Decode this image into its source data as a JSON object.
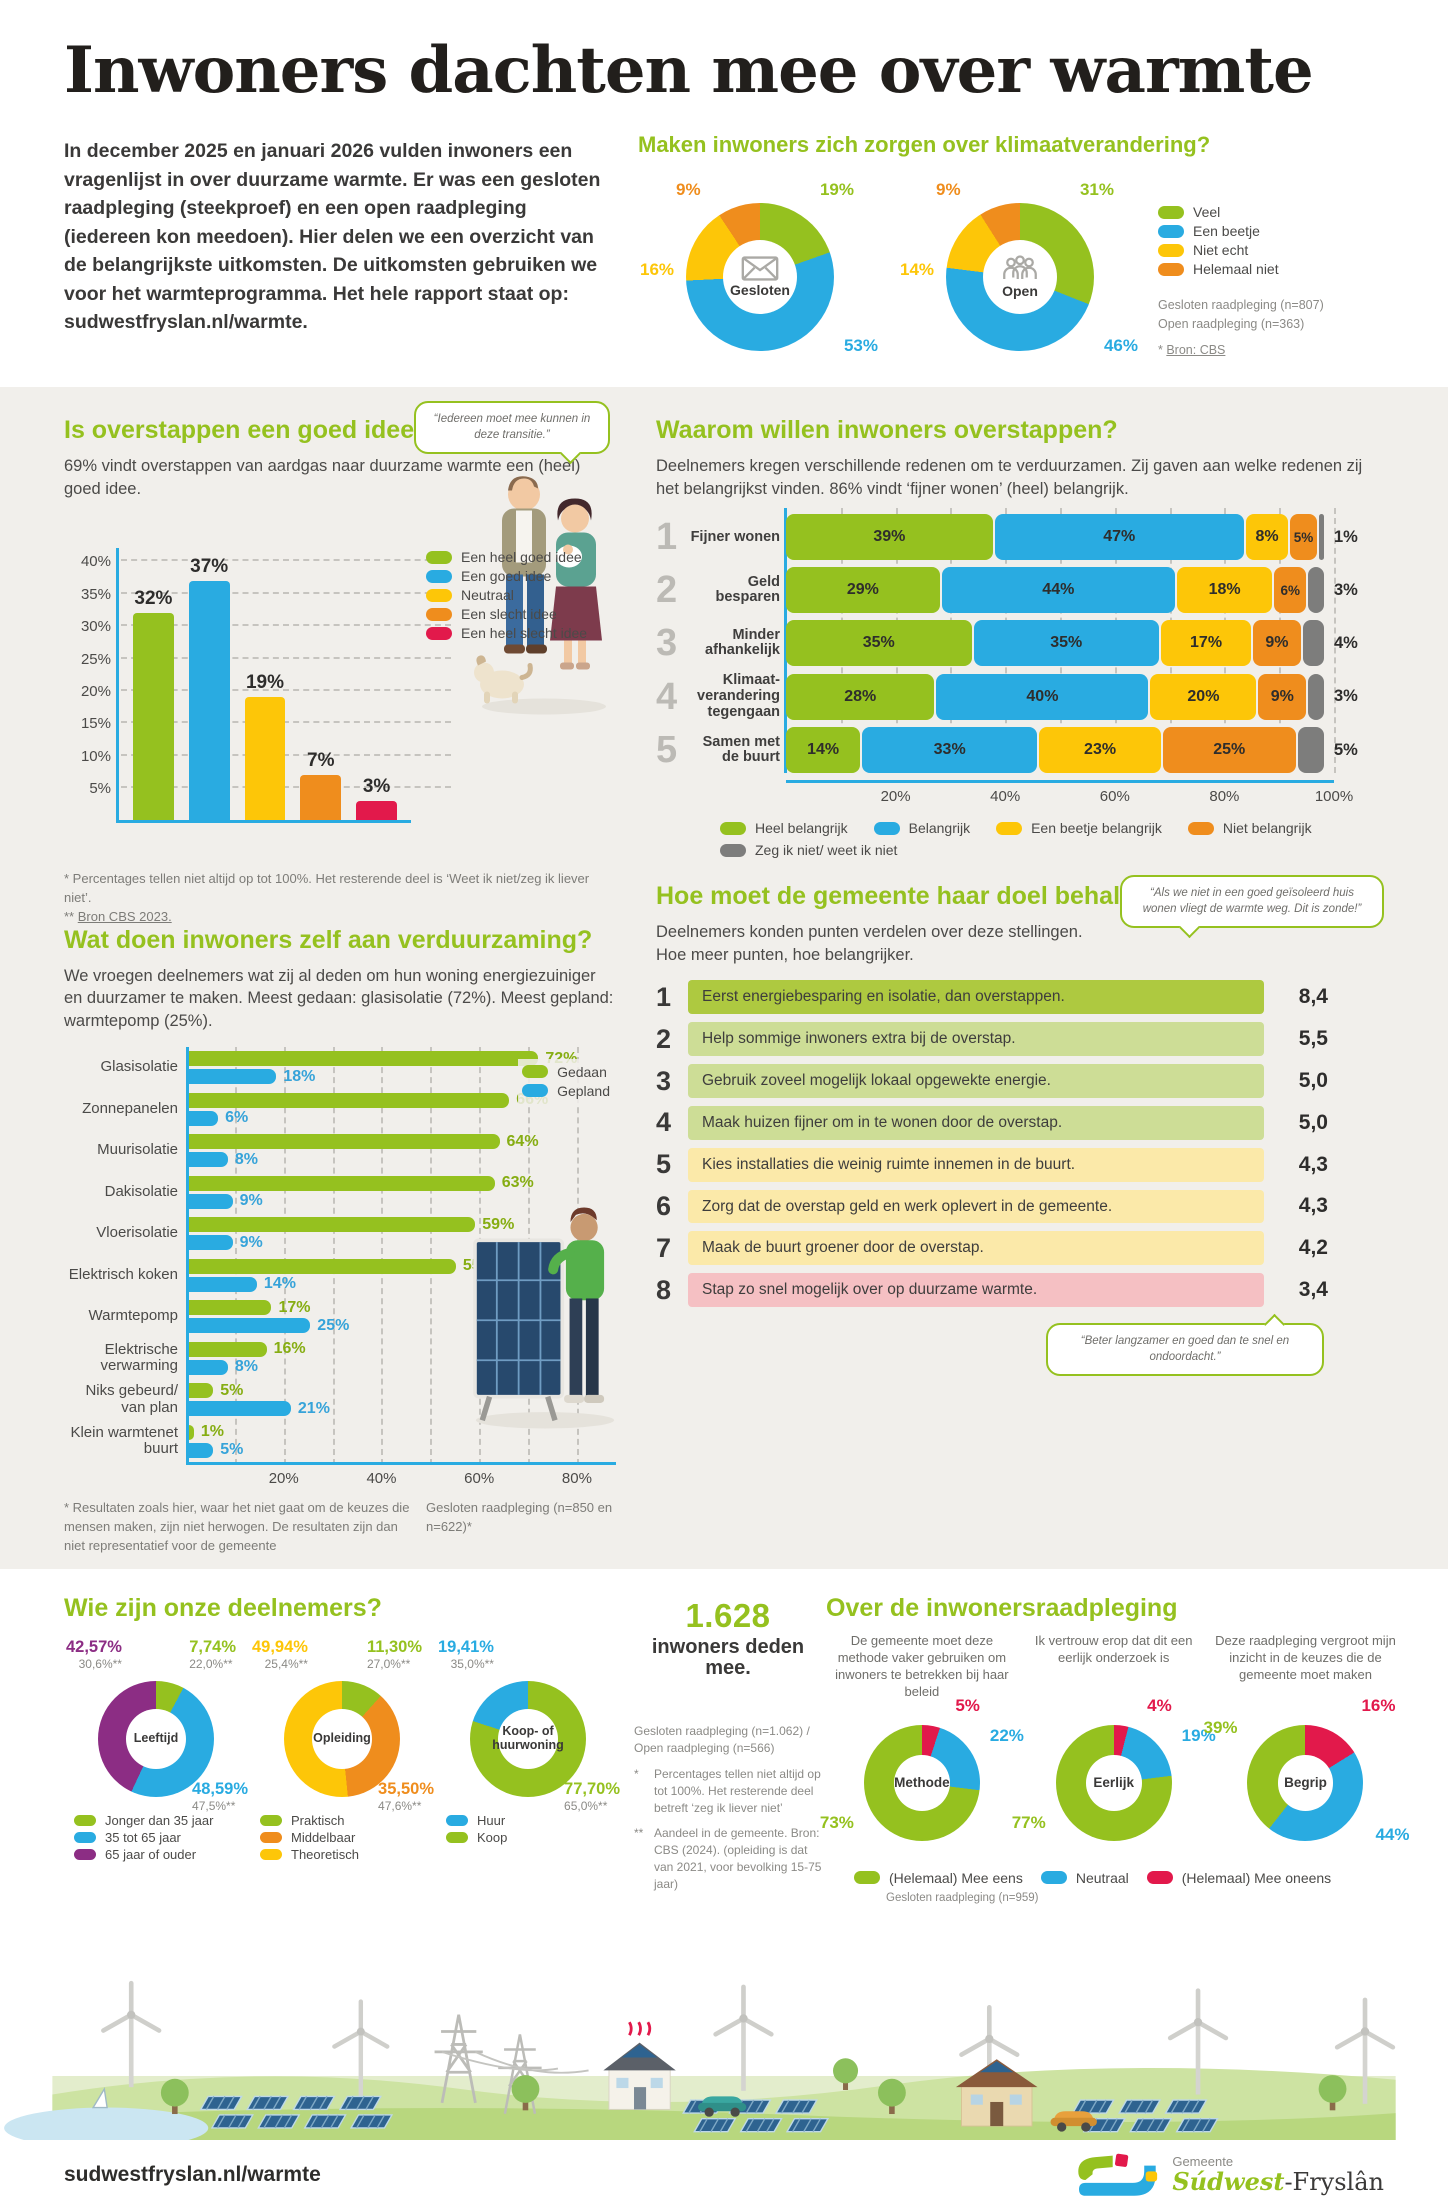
{
  "page_title": "Inwoners dachten mee over warmte",
  "colors": {
    "green": "#95c11f",
    "blue": "#29abe1",
    "yellow": "#fdc608",
    "orange": "#ef8d1d",
    "red": "#e2194b",
    "purple": "#8c2d84",
    "gray": "#7d7d7c",
    "dark": "#3a3938"
  },
  "sections": {
    "intro": "In december 2025 en januari 2026 vulden inwoners een vragenlijst in over duurzame warmte. Er was een gesloten raadpleging (steekproef) en een open raadpleging (iedereen kon meedoen). Hier delen we een overzicht van de belangrijkste uitkomsten. De uitkomsten gebruiken we voor het warmteprogramma. Het hele rapport staat op: sudwestfryslan.nl/warmte.",
    "zorgen": {
      "title": "Maken inwoners zich zorgen over klimaatverandering?",
      "note1": "Gesloten raadpleging (n=807)",
      "note2": "Open raadpleging (n=363)",
      "source_star": "* ",
      "source": "Bron: CBS"
    },
    "goed_idee": {
      "title": "Is overstappen een goed idee?",
      "subtitle": "69% vindt overstappen van aardgas naar duurzame warmte een (heel) goed idee.",
      "bubble": "“Iedereen moet mee kunnen in deze transitie.”",
      "footnote1": "*   Percentages tellen niet altijd op tot 100%. Het resterende deel is ‘Weet ik niet/zeg ik liever niet’.",
      "footnote2_star": "** ",
      "footnote2": "Bron CBS 2023."
    },
    "waarom": {
      "title": "Waarom willen inwoners overstappen?",
      "subtitle": "Deelnemers kregen verschillende redenen om te verduurzamen. Zij gaven aan welke redenen zij het belangrijkst vinden. 86% vindt ‘fijner wonen’ (heel) belangrijk."
    },
    "zelf": {
      "title": "Wat doen inwoners zelf aan verduurzaming?",
      "subtitle": "We vroegen deelnemers wat zij al deden om hun woning energiezuiniger en duurzamer te maken. Meest gedaan: glasisolatie (72%). Meest gepland: warmtepomp (25%).",
      "footnote": "* Resultaten zoals hier, waar het niet gaat om de keuzes die mensen maken, zijn niet herwogen. De resultaten zijn dan niet representatief voor de gemeente",
      "note_right": "Gesloten raadpleging (n=850 en n=622)*"
    },
    "doel": {
      "title": "Hoe moet de gemeente haar doel behalen?",
      "subtitle": "Deelnemers konden punten verdelen over deze stellingen. Hoe meer punten, hoe belangrijker.",
      "bubble1": "“Als we niet in een goed geïsoleerd huis wonen vliegt de warmte weg. Dit is zonde!”",
      "bubble2": "“Beter langzamer en goed dan te snel en ondoordacht.”"
    },
    "deelnemers": {
      "title": "Wie zijn onze deelnemers?",
      "big_number": "1.628",
      "big_caption": "inwoners deden mee.",
      "note1": "Gesloten raadpleging (n=1.062) / Open raadpleging (n=566)",
      "fn1_star": "*",
      "fn1": "Percentages tellen niet altijd op tot 100%. Het resterende deel betreft ‘zeg ik liever niet’",
      "fn2_star": "**",
      "fn2": "Aandeel in de gemeente. Bron: CBS (2024). (opleiding is dat van 2021, voor bevolking 15-75 jaar)"
    },
    "raadpleging": {
      "title": "Over de inwonersraadpleging",
      "legend": [
        {
          "label": "(Helemaal) Mee eens",
          "color": "green"
        },
        {
          "label": "Neutraal",
          "color": "blue"
        },
        {
          "label": "(Helemaal) Mee oneens",
          "color": "red"
        }
      ],
      "note": "Gesloten raadpleging (n=959)"
    },
    "footer": {
      "url": "sudwestfryslan.nl/warmte",
      "gemeente": "Gemeente",
      "name_green": "Súdwest",
      "name_dark": "-Fryslân"
    }
  },
  "chart_data": [
    {
      "id": "zorgen-gesloten",
      "type": "pie",
      "title": "Gesloten",
      "icon": "envelope",
      "labels": [
        "Veel",
        "Een beetje",
        "Niet echt",
        "Helemaal niet"
      ],
      "values": [
        19,
        53,
        16,
        9
      ],
      "display": [
        "19%",
        "53%",
        "16%",
        "9%"
      ],
      "colors": [
        "green",
        "blue",
        "yellow",
        "orange"
      ],
      "label_pos": [
        "tr",
        "br",
        "l",
        "tl"
      ]
    },
    {
      "id": "zorgen-open",
      "type": "pie",
      "title": "Open",
      "icon": "people",
      "labels": [
        "Veel",
        "Een beetje",
        "Niet echt",
        "Helemaal niet"
      ],
      "values": [
        31,
        46,
        14,
        9
      ],
      "display": [
        "31%",
        "46%",
        "14%",
        "9%"
      ],
      "colors": [
        "green",
        "blue",
        "yellow",
        "orange"
      ],
      "label_pos": [
        "tr",
        "br",
        "l",
        "tl"
      ]
    },
    {
      "id": "goed-idee",
      "type": "bar",
      "categories": [
        "Een heel goed idee",
        "Een goed idee",
        "Neutraal",
        "Een slecht idee",
        "Een heel slecht idee"
      ],
      "values": [
        32,
        37,
        19,
        7,
        3
      ],
      "colors": [
        "green",
        "blue",
        "yellow",
        "orange",
        "red"
      ],
      "ylim": [
        0,
        42
      ],
      "yticks": [
        5,
        10,
        15,
        20,
        25,
        30,
        35,
        40
      ]
    },
    {
      "id": "waarom-overstappen",
      "type": "stacked-bar-h",
      "categories": [
        "Fijner wonen",
        "Geld besparen",
        "Minder afhankelijk",
        "Klimaat-verandering tegengaan",
        "Samen met de buurt"
      ],
      "series": [
        {
          "name": "Heel belangrijk",
          "color": "green",
          "values": [
            39,
            29,
            35,
            28,
            14
          ]
        },
        {
          "name": "Belangrijk",
          "color": "blue",
          "values": [
            47,
            44,
            35,
            40,
            33
          ]
        },
        {
          "name": "Een beetje belangrijk",
          "color": "yellow",
          "values": [
            8,
            18,
            17,
            20,
            23
          ]
        },
        {
          "name": "Niet belangrijk",
          "color": "orange",
          "values": [
            5,
            6,
            9,
            9,
            25
          ]
        },
        {
          "name": "Zeg ik niet/ weet ik niet",
          "color": "gray",
          "values": [
            1,
            3,
            4,
            3,
            5
          ]
        }
      ],
      "xticks": [
        20,
        40,
        60,
        80,
        100
      ],
      "xmax": 100
    },
    {
      "id": "zelf-verduurzaming",
      "type": "grouped-bar-h",
      "categories": [
        "Glasisolatie",
        "Zonnepanelen",
        "Muurisolatie",
        "Dakisolatie",
        "Vloerisolatie",
        "Elektrisch koken",
        "Warmtepomp",
        "Elektrische verwarming",
        "Niks gebeurd/ van plan",
        "Klein warmtenet buurt"
      ],
      "series": [
        {
          "name": "Gedaan",
          "color": "green",
          "values": [
            72,
            66,
            64,
            63,
            59,
            55,
            17,
            16,
            5,
            1
          ]
        },
        {
          "name": "Gepland",
          "color": "blue",
          "values": [
            18,
            6,
            8,
            9,
            9,
            14,
            25,
            8,
            21,
            5
          ]
        }
      ],
      "xticks": [
        20,
        40,
        60,
        80
      ],
      "xmax": 88
    },
    {
      "id": "doel-stellingen",
      "type": "table",
      "items": [
        {
          "rank": "1",
          "text": "Eerst energiebesparing en isolatie, dan overstappen.",
          "score": "8,4",
          "tone": "strong"
        },
        {
          "rank": "2",
          "text": "Help sommige inwoners extra bij de overstap.",
          "score": "5,5",
          "tone": "green"
        },
        {
          "rank": "3",
          "text": "Gebruik zoveel mogelijk lokaal opgewekte energie.",
          "score": "5,0",
          "tone": "green"
        },
        {
          "rank": "4",
          "text": "Maak huizen fijner om in te wonen door de overstap.",
          "score": "5,0",
          "tone": "green"
        },
        {
          "rank": "5",
          "text": "Kies installaties die weinig ruimte innemen in de buurt.",
          "score": "4,3",
          "tone": "yellow"
        },
        {
          "rank": "6",
          "text": "Zorg dat de overstap geld en werk oplevert in de gemeente.",
          "score": "4,3",
          "tone": "yellow"
        },
        {
          "rank": "7",
          "text": "Maak de buurt groener door de overstap.",
          "score": "4,2",
          "tone": "yellow"
        },
        {
          "rank": "8",
          "text": "Stap zo snel mogelijk over op duurzame warmte.",
          "score": "3,4",
          "tone": "pink"
        }
      ]
    },
    {
      "id": "leeftijd",
      "type": "pie",
      "title": "Leeftijd",
      "labels": [
        "Jonger dan 35 jaar",
        "35 tot 65 jaar",
        "65 jaar of ouder"
      ],
      "values": [
        7.74,
        48.59,
        42.57
      ],
      "display": [
        "7,74%",
        "48,59%",
        "42,57%"
      ],
      "refs": [
        "22,0%**",
        "47,5%**",
        "30,6%**"
      ],
      "colors": [
        "green",
        "blue",
        "purple"
      ],
      "label_pos": [
        "tr",
        "br",
        "tl"
      ]
    },
    {
      "id": "opleiding",
      "type": "pie",
      "title": "Opleiding",
      "labels": [
        "Praktisch",
        "Middelbaar",
        "Theoretisch"
      ],
      "values": [
        11.3,
        35.5,
        49.94
      ],
      "display": [
        "11,30%",
        "35,50%",
        "49,94%"
      ],
      "refs": [
        "27,0%**",
        "47,6%**",
        "25,4%**"
      ],
      "colors": [
        "green",
        "orange",
        "yellow"
      ],
      "label_pos": [
        "tr",
        "br",
        "tl"
      ]
    },
    {
      "id": "koop-huur",
      "type": "pie",
      "title": "Koop- of huurwoning",
      "labels": [
        "Huur",
        "Koop"
      ],
      "values": [
        19.41,
        77.7
      ],
      "display": [
        "19,41%",
        "77,70%"
      ],
      "refs": [
        "35,0%**",
        "65,0%**"
      ],
      "colors": [
        "blue",
        "green"
      ],
      "label_pos": [
        "tl",
        "br"
      ],
      "rotate": -72
    },
    {
      "id": "methode",
      "type": "pie",
      "title": "Methode",
      "caption": "De gemeente moet deze methode vaker gebruiken om inwoners te betrekken bij haar beleid",
      "labels": [
        "(Helemaal) Mee oneens",
        "Neutraal",
        "(Helemaal) Mee eens"
      ],
      "values": [
        5,
        22,
        73
      ],
      "display": [
        "5%",
        "22%",
        "73%"
      ],
      "colors": [
        "red",
        "blue",
        "green"
      ],
      "label_pos": [
        "t",
        "r",
        "bl"
      ]
    },
    {
      "id": "eerlijk",
      "type": "pie",
      "title": "Eerlijk",
      "caption": "Ik vertrouw erop dat dit een eerlijk onderzoek is",
      "labels": [
        "(Helemaal) Mee oneens",
        "Neutraal",
        "(Helemaal) Mee eens"
      ],
      "values": [
        4,
        19,
        77
      ],
      "display": [
        "4%",
        "19%",
        "77%"
      ],
      "colors": [
        "red",
        "blue",
        "green"
      ],
      "label_pos": [
        "t",
        "r",
        "bl"
      ]
    },
    {
      "id": "begrip",
      "type": "pie",
      "title": "Begrip",
      "caption": "Deze raadpleging vergroot mijn inzicht in de keuzes die de gemeente moet maken",
      "labels": [
        "(Helemaal) Mee oneens",
        "Neutraal",
        "(Helemaal) Mee eens"
      ],
      "values": [
        16,
        44,
        39
      ],
      "display": [
        "16%",
        "44%",
        "39%"
      ],
      "colors": [
        "red",
        "blue",
        "green"
      ],
      "label_pos": [
        "tr",
        "br",
        "tl"
      ]
    }
  ]
}
